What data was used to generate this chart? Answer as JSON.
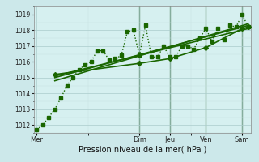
{
  "background_color": "#cce8ea",
  "plot_bg": "#d6f0f0",
  "grid_major_color": "#aacccc",
  "grid_minor_color": "#c4e0e0",
  "line_color": "#1a6600",
  "xlabel": "Pression niveau de la mer( hPa )",
  "ylim": [
    1011.5,
    1019.5
  ],
  "yticks": [
    1012,
    1013,
    1014,
    1015,
    1016,
    1017,
    1018,
    1019
  ],
  "day_labels": [
    "Mer",
    "Dim",
    "Jeu",
    "Ven",
    "Sam"
  ],
  "day_x": [
    0,
    17,
    22,
    28,
    34
  ],
  "total_hours": 36,
  "series": [
    {
      "x": [
        0,
        1,
        2,
        3,
        4,
        5,
        6,
        7,
        8,
        9,
        10,
        11,
        12,
        13,
        14,
        15,
        16,
        17,
        18,
        19,
        20,
        21,
        22,
        23,
        24,
        25,
        26,
        27,
        28,
        29,
        30,
        31,
        32,
        33,
        34,
        35
      ],
      "y": [
        1011.7,
        1012.0,
        1012.5,
        1013.0,
        1013.7,
        1014.5,
        1015.0,
        1015.5,
        1015.8,
        1016.0,
        1016.7,
        1016.7,
        1016.1,
        1016.2,
        1016.4,
        1017.9,
        1018.0,
        1016.4,
        1018.3,
        1016.3,
        1016.3,
        1017.0,
        1016.3,
        1016.3,
        1017.0,
        1017.0,
        1016.8,
        1017.5,
        1018.1,
        1017.3,
        1018.1,
        1017.4,
        1018.3,
        1018.2,
        1019.0,
        1018.2
      ],
      "linestyle": "dotted",
      "marker": "s",
      "markersize": 2.5,
      "linewidth": 1.0,
      "zorder": 3
    },
    {
      "x": [
        3,
        35
      ],
      "y": [
        1014.8,
        1018.4
      ],
      "linestyle": "-",
      "marker": null,
      "markersize": 0,
      "linewidth": 1.2,
      "zorder": 2
    },
    {
      "x": [
        3,
        35
      ],
      "y": [
        1015.0,
        1018.3
      ],
      "linestyle": "-",
      "marker": null,
      "markersize": 0,
      "linewidth": 1.2,
      "zorder": 2
    },
    {
      "x": [
        3,
        35
      ],
      "y": [
        1015.1,
        1018.1
      ],
      "linestyle": "-",
      "marker": null,
      "markersize": 0,
      "linewidth": 1.2,
      "zorder": 2
    },
    {
      "x": [
        3,
        17,
        22,
        28,
        34,
        35
      ],
      "y": [
        1015.2,
        1015.9,
        1016.2,
        1016.9,
        1018.1,
        1018.2
      ],
      "linestyle": "-",
      "marker": "D",
      "markersize": 3,
      "linewidth": 1.2,
      "zorder": 4
    }
  ],
  "vline_x": [
    17,
    22,
    28,
    34
  ],
  "vline_color": "#336633",
  "vline_lw": 0.9
}
